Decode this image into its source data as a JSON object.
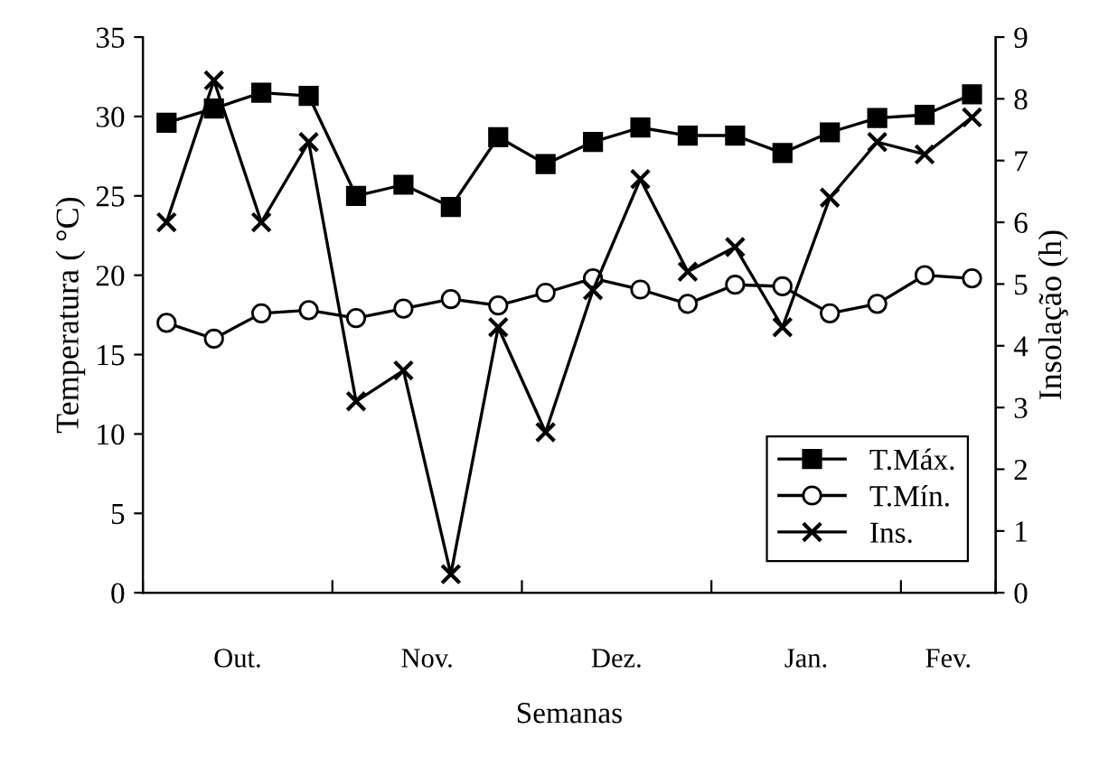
{
  "chart_data": {
    "type": "line",
    "xlabel": "Semanas",
    "ylabel": "Temperatura ( °C)",
    "y2label": "Insolação (h)",
    "categories": [
      null,
      null,
      null,
      null,
      null,
      null,
      null,
      null,
      null,
      null,
      null,
      null,
      null,
      null,
      null,
      null,
      null,
      null
    ],
    "annotations": [
      "Out.",
      "Nov.",
      "Dez.",
      "Jan.",
      "Fev."
    ],
    "ylim": [
      0,
      35
    ],
    "yticks": [
      0,
      5,
      10,
      15,
      20,
      25,
      30,
      35
    ],
    "y2lim": [
      0,
      9
    ],
    "y2ticks": [
      0,
      1,
      2,
      3,
      4,
      5,
      6,
      7,
      8,
      9
    ],
    "series": [
      {
        "name": "T.Máx.",
        "color": "#000000",
        "marker": "square",
        "values": [
          29.6,
          30.5,
          31.5,
          31.3,
          25.0,
          25.7,
          24.3,
          28.7,
          27.0,
          28.4,
          29.3,
          28.8,
          28.8,
          27.7,
          29.0,
          29.9,
          30.1,
          31.4
        ]
      },
      {
        "name": "T.Mín.",
        "color": "#000000",
        "marker": "circle",
        "values": [
          17.0,
          16.0,
          17.6,
          17.8,
          17.3,
          17.9,
          18.5,
          18.1,
          18.9,
          19.8,
          19.1,
          18.2,
          19.4,
          19.3,
          17.6,
          18.2,
          20.0,
          19.8
        ]
      },
      {
        "name": "Ins.",
        "color": "#000000",
        "marker": "cross",
        "axis": "y2",
        "values": [
          6.0,
          8.3,
          6.0,
          7.3,
          3.1,
          3.6,
          0.3,
          4.3,
          2.6,
          4.9,
          6.7,
          5.2,
          5.6,
          4.3,
          6.4,
          7.3,
          7.1,
          7.7
        ]
      }
    ],
    "legend": "bottom right",
    "grid": false,
    "line_style": "solid"
  }
}
